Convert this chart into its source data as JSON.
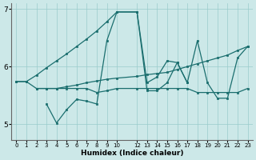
{
  "background_color": "#cce8e8",
  "grid_color": "#99cccc",
  "line_color": "#1a6e6e",
  "xlabel": "Humidex (Indice chaleur)",
  "xlim": [
    -0.5,
    23.5
  ],
  "ylim": [
    4.72,
    7.1
  ],
  "yticks": [
    5,
    6,
    7
  ],
  "xtick_vals": [
    0,
    1,
    2,
    3,
    4,
    5,
    6,
    7,
    8,
    9,
    10,
    12,
    13,
    14,
    15,
    16,
    17,
    18,
    19,
    20,
    21,
    22,
    23
  ],
  "curves": [
    {
      "x": [
        0,
        1,
        2,
        3,
        4,
        5,
        6,
        7,
        8,
        9,
        10,
        12,
        13,
        14,
        15,
        16,
        17,
        18,
        19,
        20,
        21,
        22,
        23
      ],
      "y": [
        5.74,
        5.74,
        5.85,
        5.98,
        6.1,
        6.22,
        6.35,
        6.48,
        6.62,
        6.78,
        6.95,
        6.95,
        5.72,
        5.82,
        6.1,
        6.07,
        5.72,
        null,
        null,
        null,
        null,
        null,
        null
      ]
    },
    {
      "x": [
        0,
        1,
        2,
        3,
        4,
        5,
        6,
        7,
        8,
        9,
        10,
        12,
        13,
        14,
        15,
        16,
        17,
        18,
        19,
        20,
        21,
        22,
        23
      ],
      "y": [
        5.74,
        5.74,
        5.62,
        5.62,
        5.62,
        5.65,
        5.68,
        5.72,
        5.75,
        5.78,
        5.8,
        5.83,
        5.86,
        5.88,
        5.9,
        5.95,
        6.0,
        6.05,
        6.1,
        6.15,
        6.2,
        6.28,
        6.35
      ]
    },
    {
      "x": [
        3,
        4,
        5,
        6,
        7,
        8,
        9,
        10,
        12,
        13,
        14,
        15,
        16,
        17,
        18,
        19,
        20,
        21,
        22,
        23
      ],
      "y": [
        5.35,
        5.02,
        5.25,
        5.43,
        5.4,
        5.35,
        6.45,
        6.95,
        6.95,
        5.58,
        5.58,
        5.72,
        6.07,
        5.72,
        6.45,
        5.72,
        5.45,
        5.45,
        6.15,
        6.35
      ]
    },
    {
      "x": [
        2,
        3,
        4,
        5,
        6,
        7,
        8,
        9,
        10,
        12,
        13,
        14,
        15,
        16,
        17,
        18,
        19,
        20,
        21,
        22,
        23
      ],
      "y": [
        5.62,
        5.62,
        5.62,
        5.62,
        5.62,
        5.62,
        5.55,
        5.58,
        5.62,
        5.62,
        5.62,
        5.62,
        5.62,
        5.62,
        5.62,
        5.55,
        5.55,
        5.55,
        5.55,
        5.55,
        5.62
      ]
    }
  ]
}
